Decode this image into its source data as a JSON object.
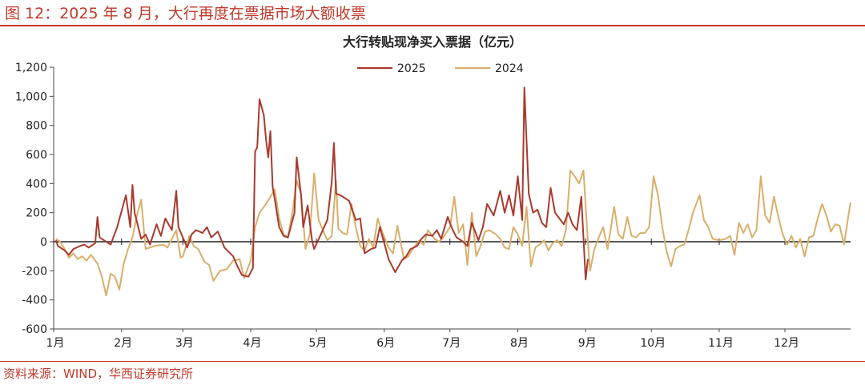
{
  "figure": {
    "title": "图 12：2025 年 8 月，大行再度在票据市场大额收票",
    "source": "资料来源：WIND，华西证券研究所"
  },
  "colors": {
    "accent": "#c0392b",
    "series_2025": "#a83a2e",
    "series_2024": "#d9ae6b"
  },
  "chart_data": {
    "type": "line",
    "title": "大行转贴现净买入票据（亿元）",
    "xlabel": "",
    "ylabel": "",
    "x_ticks": [
      "1月",
      "2月",
      "3月",
      "4月",
      "5月",
      "6月",
      "7月",
      "8月",
      "9月",
      "10月",
      "11月",
      "12月"
    ],
    "x_range": [
      "01-01",
      "12-31"
    ],
    "ylim": [
      -600,
      1200
    ],
    "y_ticks": [
      "-600",
      "-400",
      "-200",
      "0",
      "200",
      "400",
      "600",
      "800",
      "1,000",
      "1,200"
    ],
    "y_tick_values": [
      -600,
      -400,
      -200,
      0,
      200,
      400,
      600,
      800,
      1000,
      1200
    ],
    "grid": false,
    "legend": "top-center",
    "series": [
      {
        "name": "2025",
        "color": "#a83a2e",
        "points": [
          [
            "01-02",
            10
          ],
          [
            "01-03",
            -30
          ],
          [
            "01-06",
            -60
          ],
          [
            "01-08",
            -90
          ],
          [
            "01-10",
            -50
          ],
          [
            "01-13",
            -30
          ],
          [
            "01-15",
            -20
          ],
          [
            "01-17",
            -40
          ],
          [
            "01-20",
            -10
          ],
          [
            "01-21",
            170
          ],
          [
            "01-22",
            30
          ],
          [
            "01-24",
            10
          ],
          [
            "01-27",
            -20
          ],
          [
            "01-30",
            100
          ],
          [
            "02-03",
            320
          ],
          [
            "02-05",
            100
          ],
          [
            "02-06",
            390
          ],
          [
            "02-07",
            200
          ],
          [
            "02-10",
            20
          ],
          [
            "02-12",
            50
          ],
          [
            "02-14",
            -20
          ],
          [
            "02-17",
            120
          ],
          [
            "02-19",
            40
          ],
          [
            "02-21",
            160
          ],
          [
            "02-24",
            80
          ],
          [
            "02-26",
            350
          ],
          [
            "02-27",
            100
          ],
          [
            "03-03",
            -40
          ],
          [
            "03-05",
            50
          ],
          [
            "03-07",
            80
          ],
          [
            "03-10",
            60
          ],
          [
            "03-12",
            100
          ],
          [
            "03-14",
            30
          ],
          [
            "03-17",
            70
          ],
          [
            "03-20",
            -40
          ],
          [
            "03-24",
            -100
          ],
          [
            "03-26",
            -170
          ],
          [
            "03-28",
            -230
          ],
          [
            "03-31",
            -240
          ],
          [
            "04-02",
            -180
          ],
          [
            "04-03",
            620
          ],
          [
            "04-04",
            650
          ],
          [
            "04-05",
            980
          ],
          [
            "04-07",
            870
          ],
          [
            "04-08",
            700
          ],
          [
            "04-09",
            580
          ],
          [
            "04-10",
            760
          ],
          [
            "04-11",
            380
          ],
          [
            "04-14",
            100
          ],
          [
            "04-16",
            40
          ],
          [
            "04-18",
            30
          ],
          [
            "04-21",
            200
          ],
          [
            "04-22",
            580
          ],
          [
            "04-24",
            320
          ],
          [
            "04-25",
            100
          ],
          [
            "04-27",
            250
          ],
          [
            "04-29",
            10
          ],
          [
            "04-30",
            -50
          ],
          [
            "05-06",
            150
          ],
          [
            "05-08",
            410
          ],
          [
            "05-09",
            680
          ],
          [
            "05-10",
            330
          ],
          [
            "05-12",
            320
          ],
          [
            "05-14",
            300
          ],
          [
            "05-16",
            280
          ],
          [
            "05-19",
            150
          ],
          [
            "05-21",
            160
          ],
          [
            "05-23",
            -80
          ],
          [
            "05-26",
            -50
          ],
          [
            "05-28",
            -40
          ],
          [
            "05-30",
            100
          ],
          [
            "06-03",
            -120
          ],
          [
            "06-05",
            -180
          ],
          [
            "06-06",
            -210
          ],
          [
            "06-09",
            -130
          ],
          [
            "06-11",
            -100
          ],
          [
            "06-13",
            -50
          ],
          [
            "06-16",
            -30
          ],
          [
            "06-18",
            20
          ],
          [
            "06-20",
            50
          ],
          [
            "06-23",
            40
          ],
          [
            "06-25",
            80
          ],
          [
            "06-27",
            20
          ],
          [
            "06-30",
            170
          ],
          [
            "07-02",
            90
          ],
          [
            "07-04",
            30
          ],
          [
            "07-07",
            0
          ],
          [
            "07-09",
            -30
          ],
          [
            "07-11",
            130
          ],
          [
            "07-14",
            10
          ],
          [
            "07-16",
            100
          ],
          [
            "07-18",
            260
          ],
          [
            "07-21",
            180
          ],
          [
            "07-24",
            350
          ],
          [
            "07-26",
            200
          ],
          [
            "07-28",
            320
          ],
          [
            "07-30",
            180
          ],
          [
            "08-01",
            450
          ],
          [
            "08-03",
            150
          ],
          [
            "08-04",
            1060
          ],
          [
            "08-05",
            700
          ],
          [
            "08-06",
            330
          ],
          [
            "08-08",
            200
          ],
          [
            "08-10",
            220
          ],
          [
            "08-12",
            130
          ],
          [
            "08-14",
            100
          ],
          [
            "08-16",
            370
          ],
          [
            "08-18",
            200
          ],
          [
            "08-20",
            160
          ],
          [
            "08-22",
            120
          ],
          [
            "08-24",
            200
          ],
          [
            "08-26",
            120
          ],
          [
            "08-28",
            80
          ],
          [
            "08-30",
            310
          ],
          [
            "09-01",
            -260
          ],
          [
            "09-02",
            -120
          ]
        ]
      },
      {
        "name": "2024",
        "color": "#d9ae6b",
        "points": [
          [
            "01-02",
            20
          ],
          [
            "01-04",
            0
          ],
          [
            "01-06",
            -50
          ],
          [
            "01-08",
            -110
          ],
          [
            "01-10",
            -80
          ],
          [
            "01-12",
            -120
          ],
          [
            "01-14",
            -100
          ],
          [
            "01-16",
            -130
          ],
          [
            "01-18",
            -90
          ],
          [
            "01-21",
            -150
          ],
          [
            "01-23",
            -240
          ],
          [
            "01-25",
            -370
          ],
          [
            "01-27",
            -220
          ],
          [
            "01-29",
            -240
          ],
          [
            "01-31",
            -330
          ],
          [
            "02-02",
            -150
          ],
          [
            "02-04",
            -50
          ],
          [
            "02-06",
            30
          ],
          [
            "02-08",
            180
          ],
          [
            "02-10",
            290
          ],
          [
            "02-12",
            -50
          ],
          [
            "02-16",
            -30
          ],
          [
            "02-20",
            -20
          ],
          [
            "02-22",
            -40
          ],
          [
            "02-24",
            20
          ],
          [
            "02-26",
            80
          ],
          [
            "02-28",
            -110
          ],
          [
            "03-01",
            -100
          ],
          [
            "03-04",
            40
          ],
          [
            "03-06",
            -30
          ],
          [
            "03-08",
            -50
          ],
          [
            "03-11",
            -140
          ],
          [
            "03-13",
            -160
          ],
          [
            "03-15",
            -270
          ],
          [
            "03-18",
            -200
          ],
          [
            "03-21",
            -190
          ],
          [
            "03-24",
            -130
          ],
          [
            "03-27",
            -120
          ],
          [
            "03-29",
            -250
          ],
          [
            "04-01",
            -130
          ],
          [
            "04-03",
            100
          ],
          [
            "04-05",
            200
          ],
          [
            "04-08",
            260
          ],
          [
            "04-12",
            360
          ],
          [
            "04-14",
            160
          ],
          [
            "04-16",
            50
          ],
          [
            "04-18",
            30
          ],
          [
            "04-20",
            200
          ],
          [
            "04-22",
            420
          ],
          [
            "04-24",
            330
          ],
          [
            "04-26",
            -50
          ],
          [
            "04-28",
            50
          ],
          [
            "04-30",
            470
          ],
          [
            "05-02",
            150
          ],
          [
            "05-06",
            10
          ],
          [
            "05-08",
            40
          ],
          [
            "05-10",
            420
          ],
          [
            "05-11",
            90
          ],
          [
            "05-13",
            60
          ],
          [
            "05-15",
            50
          ],
          [
            "05-17",
            260
          ],
          [
            "05-19",
            100
          ],
          [
            "05-21",
            -30
          ],
          [
            "05-23",
            -60
          ],
          [
            "05-25",
            20
          ],
          [
            "05-27",
            -40
          ],
          [
            "05-29",
            160
          ],
          [
            "05-31",
            70
          ],
          [
            "06-03",
            -40
          ],
          [
            "06-05",
            -80
          ],
          [
            "06-07",
            110
          ],
          [
            "06-10",
            -120
          ],
          [
            "06-12",
            -100
          ],
          [
            "06-14",
            -50
          ],
          [
            "06-17",
            10
          ],
          [
            "06-19",
            -20
          ],
          [
            "06-21",
            80
          ],
          [
            "06-24",
            20
          ],
          [
            "06-26",
            0
          ],
          [
            "06-28",
            30
          ],
          [
            "07-01",
            100
          ],
          [
            "07-03",
            310
          ],
          [
            "07-05",
            60
          ],
          [
            "07-07",
            120
          ],
          [
            "07-09",
            -160
          ],
          [
            "07-11",
            200
          ],
          [
            "07-13",
            -100
          ],
          [
            "07-15",
            -30
          ],
          [
            "07-17",
            70
          ],
          [
            "07-19",
            80
          ],
          [
            "07-22",
            50
          ],
          [
            "07-24",
            20
          ],
          [
            "07-26",
            -40
          ],
          [
            "07-28",
            -50
          ],
          [
            "07-30",
            100
          ],
          [
            "08-01",
            50
          ],
          [
            "08-03",
            -30
          ],
          [
            "08-05",
            240
          ],
          [
            "08-07",
            -170
          ],
          [
            "08-09",
            -40
          ],
          [
            "08-11",
            -20
          ],
          [
            "08-13",
            10
          ],
          [
            "08-15",
            -60
          ],
          [
            "08-17",
            -10
          ],
          [
            "08-19",
            10
          ],
          [
            "08-21",
            -30
          ],
          [
            "08-23",
            80
          ],
          [
            "08-25",
            490
          ],
          [
            "08-27",
            450
          ],
          [
            "08-29",
            400
          ],
          [
            "08-31",
            490
          ],
          [
            "09-02",
            0
          ],
          [
            "09-03",
            -200
          ],
          [
            "09-05",
            -50
          ],
          [
            "09-07",
            30
          ],
          [
            "09-09",
            100
          ],
          [
            "09-11",
            -50
          ],
          [
            "09-14",
            240
          ],
          [
            "09-16",
            50
          ],
          [
            "09-18",
            20
          ],
          [
            "09-20",
            170
          ],
          [
            "09-22",
            40
          ],
          [
            "09-24",
            30
          ],
          [
            "09-26",
            60
          ],
          [
            "09-28",
            60
          ],
          [
            "09-30",
            100
          ],
          [
            "10-02",
            450
          ],
          [
            "10-04",
            320
          ],
          [
            "10-06",
            100
          ],
          [
            "10-08",
            -70
          ],
          [
            "10-10",
            -170
          ],
          [
            "10-12",
            -50
          ],
          [
            "10-14",
            -30
          ],
          [
            "10-16",
            -20
          ],
          [
            "10-18",
            80
          ],
          [
            "10-20",
            200
          ],
          [
            "10-23",
            320
          ],
          [
            "10-25",
            150
          ],
          [
            "10-27",
            100
          ],
          [
            "10-29",
            20
          ],
          [
            "11-01",
            10
          ],
          [
            "11-04",
            20
          ],
          [
            "11-06",
            40
          ],
          [
            "11-08",
            -90
          ],
          [
            "11-10",
            130
          ],
          [
            "11-12",
            60
          ],
          [
            "11-14",
            120
          ],
          [
            "11-16",
            30
          ],
          [
            "11-18",
            80
          ],
          [
            "11-20",
            450
          ],
          [
            "11-22",
            180
          ],
          [
            "11-24",
            130
          ],
          [
            "11-26",
            310
          ],
          [
            "11-28",
            170
          ],
          [
            "11-30",
            50
          ],
          [
            "12-02",
            -20
          ],
          [
            "12-04",
            40
          ],
          [
            "12-06",
            -40
          ],
          [
            "12-08",
            20
          ],
          [
            "12-10",
            -100
          ],
          [
            "12-12",
            30
          ],
          [
            "12-14",
            40
          ],
          [
            "12-16",
            160
          ],
          [
            "12-18",
            260
          ],
          [
            "12-20",
            180
          ],
          [
            "12-22",
            70
          ],
          [
            "12-24",
            120
          ],
          [
            "12-26",
            110
          ],
          [
            "12-28",
            -20
          ],
          [
            "12-30",
            180
          ],
          [
            "12-31",
            270
          ]
        ]
      }
    ]
  }
}
